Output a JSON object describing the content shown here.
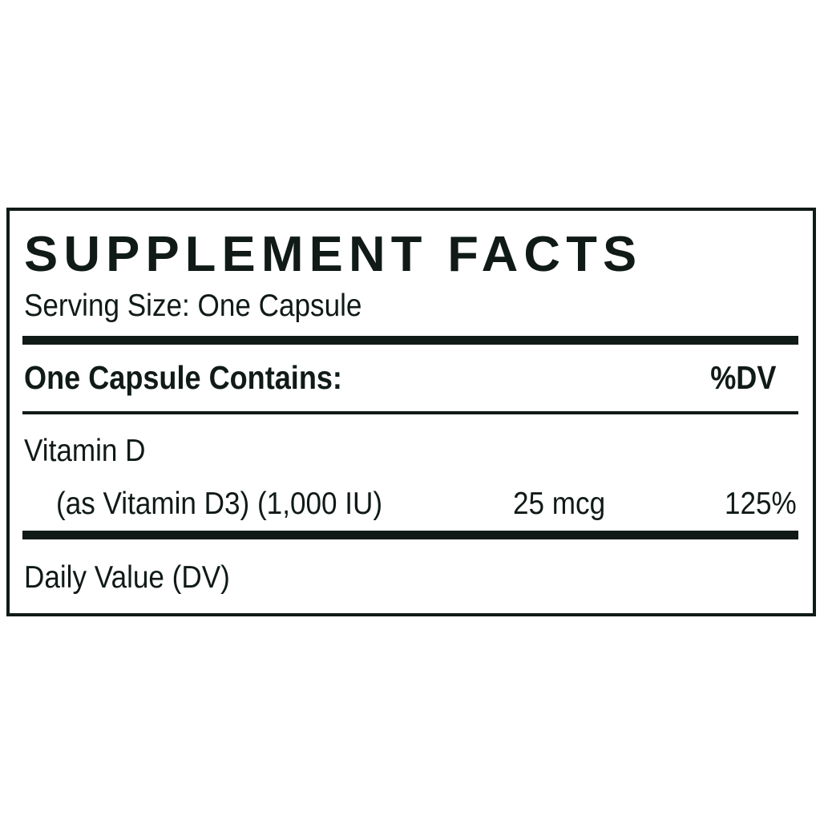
{
  "title": "SUPPLEMENT FACTS",
  "serving_size": "Serving Size: One Capsule",
  "header": {
    "contains": "One Capsule Contains:",
    "dv": "%DV"
  },
  "ingredients": [
    {
      "name": "Vitamin D",
      "detail": "(as Vitamin D3) (1,000 IU)",
      "amount": "25 mcg",
      "dv": "125%"
    }
  ],
  "footnote": "Daily Value (DV)",
  "colors": {
    "ink": "#101a17",
    "background": "#ffffff"
  }
}
